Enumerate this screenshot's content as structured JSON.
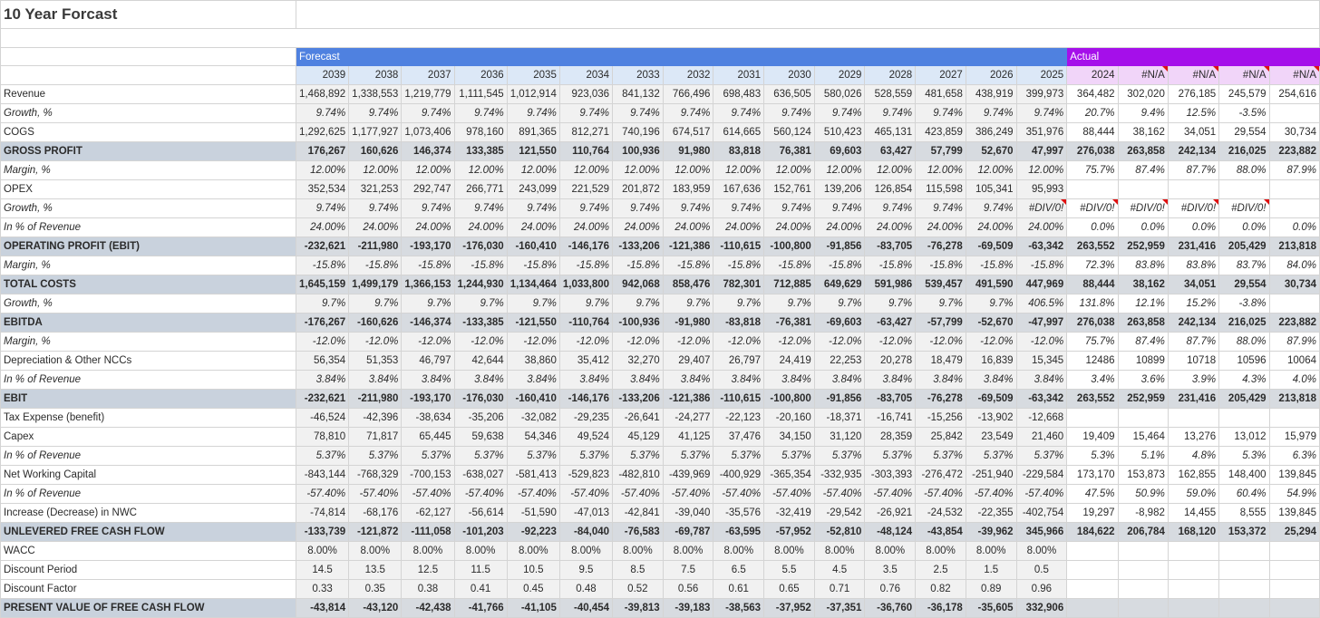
{
  "sheet": {
    "title": "10 Year Forcast",
    "forecast_label": "Forecast",
    "actual_label": "Actual",
    "forecast_years": [
      "2039",
      "2038",
      "2037",
      "2036",
      "2035",
      "2034",
      "2033",
      "2032",
      "2031",
      "2030",
      "2029",
      "2028",
      "2027",
      "2026",
      "2025"
    ],
    "actual_years": [
      "2024",
      "#N/A",
      "#N/A",
      "#N/A",
      "#N/A"
    ],
    "colors": {
      "forecast_header": "#4f81e0",
      "actual_header": "#a50fea",
      "bold_row": "#d7dbe0",
      "error_flag": "#e01010"
    }
  },
  "rows": [
    {
      "label": "Revenue",
      "style": "normal",
      "values": [
        "1,468,892",
        "1,338,553",
        "1,219,779",
        "1,111,545",
        "1,012,914",
        "923,036",
        "841,132",
        "766,496",
        "698,483",
        "636,505",
        "580,026",
        "528,559",
        "481,658",
        "438,919",
        "399,973",
        "364,482",
        "302,020",
        "276,185",
        "245,579",
        "254,616"
      ]
    },
    {
      "label": "Growth, %",
      "style": "sub",
      "values": [
        "9.74%",
        "9.74%",
        "9.74%",
        "9.74%",
        "9.74%",
        "9.74%",
        "9.74%",
        "9.74%",
        "9.74%",
        "9.74%",
        "9.74%",
        "9.74%",
        "9.74%",
        "9.74%",
        "9.74%",
        "20.7%",
        "9.4%",
        "12.5%",
        "-3.5%",
        ""
      ]
    },
    {
      "label": "COGS",
      "style": "normal",
      "values": [
        "1,292,625",
        "1,177,927",
        "1,073,406",
        "978,160",
        "891,365",
        "812,271",
        "740,196",
        "674,517",
        "614,665",
        "560,124",
        "510,423",
        "465,131",
        "423,859",
        "386,249",
        "351,976",
        "88,444",
        "38,162",
        "34,051",
        "29,554",
        "30,734"
      ]
    },
    {
      "label": "GROSS PROFIT",
      "style": "bold",
      "values": [
        "176,267",
        "160,626",
        "146,374",
        "133,385",
        "121,550",
        "110,764",
        "100,936",
        "91,980",
        "83,818",
        "76,381",
        "69,603",
        "63,427",
        "57,799",
        "52,670",
        "47,997",
        "276,038",
        "263,858",
        "242,134",
        "216,025",
        "223,882"
      ]
    },
    {
      "label": "Margin, %",
      "style": "sub",
      "values": [
        "12.00%",
        "12.00%",
        "12.00%",
        "12.00%",
        "12.00%",
        "12.00%",
        "12.00%",
        "12.00%",
        "12.00%",
        "12.00%",
        "12.00%",
        "12.00%",
        "12.00%",
        "12.00%",
        "12.00%",
        "75.7%",
        "87.4%",
        "87.7%",
        "88.0%",
        "87.9%"
      ]
    },
    {
      "label": "OPEX",
      "style": "normal",
      "values": [
        "352,534",
        "321,253",
        "292,747",
        "266,771",
        "243,099",
        "221,529",
        "201,872",
        "183,959",
        "167,636",
        "152,761",
        "139,206",
        "126,854",
        "115,598",
        "105,341",
        "95,993",
        "",
        "",
        "",
        "",
        ""
      ]
    },
    {
      "label": "Growth, %",
      "style": "sub",
      "values": [
        "9.74%",
        "9.74%",
        "9.74%",
        "9.74%",
        "9.74%",
        "9.74%",
        "9.74%",
        "9.74%",
        "9.74%",
        "9.74%",
        "9.74%",
        "9.74%",
        "9.74%",
        "9.74%",
        "#DIV/0!",
        "#DIV/0!",
        "#DIV/0!",
        "#DIV/0!",
        "#DIV/0!",
        ""
      ]
    },
    {
      "label": "In % of Revenue",
      "style": "sub",
      "values": [
        "24.00%",
        "24.00%",
        "24.00%",
        "24.00%",
        "24.00%",
        "24.00%",
        "24.00%",
        "24.00%",
        "24.00%",
        "24.00%",
        "24.00%",
        "24.00%",
        "24.00%",
        "24.00%",
        "24.00%",
        "0.0%",
        "0.0%",
        "0.0%",
        "0.0%",
        "0.0%"
      ]
    },
    {
      "label": "OPERATING PROFIT (EBIT)",
      "style": "bold",
      "values": [
        "-232,621",
        "-211,980",
        "-193,170",
        "-176,030",
        "-160,410",
        "-146,176",
        "-133,206",
        "-121,386",
        "-110,615",
        "-100,800",
        "-91,856",
        "-83,705",
        "-76,278",
        "-69,509",
        "-63,342",
        "263,552",
        "252,959",
        "231,416",
        "205,429",
        "213,818"
      ]
    },
    {
      "label": "Margin, %",
      "style": "sub",
      "values": [
        "-15.8%",
        "-15.8%",
        "-15.8%",
        "-15.8%",
        "-15.8%",
        "-15.8%",
        "-15.8%",
        "-15.8%",
        "-15.8%",
        "-15.8%",
        "-15.8%",
        "-15.8%",
        "-15.8%",
        "-15.8%",
        "-15.8%",
        "72.3%",
        "83.8%",
        "83.8%",
        "83.7%",
        "84.0%"
      ]
    },
    {
      "label": "TOTAL COSTS",
      "style": "bold",
      "values": [
        "1,645,159",
        "1,499,179",
        "1,366,153",
        "1,244,930",
        "1,134,464",
        "1,033,800",
        "942,068",
        "858,476",
        "782,301",
        "712,885",
        "649,629",
        "591,986",
        "539,457",
        "491,590",
        "447,969",
        "88,444",
        "38,162",
        "34,051",
        "29,554",
        "30,734"
      ]
    },
    {
      "label": "Growth, %",
      "style": "sub",
      "values": [
        "9.7%",
        "9.7%",
        "9.7%",
        "9.7%",
        "9.7%",
        "9.7%",
        "9.7%",
        "9.7%",
        "9.7%",
        "9.7%",
        "9.7%",
        "9.7%",
        "9.7%",
        "9.7%",
        "406.5%",
        "131.8%",
        "12.1%",
        "15.2%",
        "-3.8%",
        ""
      ]
    },
    {
      "label": "EBITDA",
      "style": "bold",
      "values": [
        "-176,267",
        "-160,626",
        "-146,374",
        "-133,385",
        "-121,550",
        "-110,764",
        "-100,936",
        "-91,980",
        "-83,818",
        "-76,381",
        "-69,603",
        "-63,427",
        "-57,799",
        "-52,670",
        "-47,997",
        "276,038",
        "263,858",
        "242,134",
        "216,025",
        "223,882"
      ]
    },
    {
      "label": "Margin, %",
      "style": "sub",
      "values": [
        "-12.0%",
        "-12.0%",
        "-12.0%",
        "-12.0%",
        "-12.0%",
        "-12.0%",
        "-12.0%",
        "-12.0%",
        "-12.0%",
        "-12.0%",
        "-12.0%",
        "-12.0%",
        "-12.0%",
        "-12.0%",
        "-12.0%",
        "75.7%",
        "87.4%",
        "87.7%",
        "88.0%",
        "87.9%"
      ]
    },
    {
      "label": "Depreciation & Other NCCs",
      "style": "normal",
      "values": [
        "56,354",
        "51,353",
        "46,797",
        "42,644",
        "38,860",
        "35,412",
        "32,270",
        "29,407",
        "26,797",
        "24,419",
        "22,253",
        "20,278",
        "18,479",
        "16,839",
        "15,345",
        "12486",
        "10899",
        "10718",
        "10596",
        "10064"
      ]
    },
    {
      "label": "In % of Revenue",
      "style": "sub",
      "values": [
        "3.84%",
        "3.84%",
        "3.84%",
        "3.84%",
        "3.84%",
        "3.84%",
        "3.84%",
        "3.84%",
        "3.84%",
        "3.84%",
        "3.84%",
        "3.84%",
        "3.84%",
        "3.84%",
        "3.84%",
        "3.4%",
        "3.6%",
        "3.9%",
        "4.3%",
        "4.0%"
      ]
    },
    {
      "label": "EBIT",
      "style": "bold",
      "values": [
        "-232,621",
        "-211,980",
        "-193,170",
        "-176,030",
        "-160,410",
        "-146,176",
        "-133,206",
        "-121,386",
        "-110,615",
        "-100,800",
        "-91,856",
        "-83,705",
        "-76,278",
        "-69,509",
        "-63,342",
        "263,552",
        "252,959",
        "231,416",
        "205,429",
        "213,818"
      ]
    },
    {
      "label": "Tax Expense (benefit)",
      "style": "normal",
      "values": [
        "-46,524",
        "-42,396",
        "-38,634",
        "-35,206",
        "-32,082",
        "-29,235",
        "-26,641",
        "-24,277",
        "-22,123",
        "-20,160",
        "-18,371",
        "-16,741",
        "-15,256",
        "-13,902",
        "-12,668",
        "",
        "",
        "",
        "",
        ""
      ]
    },
    {
      "label": "Capex",
      "style": "normal",
      "values": [
        "78,810",
        "71,817",
        "65,445",
        "59,638",
        "54,346",
        "49,524",
        "45,129",
        "41,125",
        "37,476",
        "34,150",
        "31,120",
        "28,359",
        "25,842",
        "23,549",
        "21,460",
        "19,409",
        "15,464",
        "13,276",
        "13,012",
        "15,979"
      ]
    },
    {
      "label": "In % of Revenue",
      "style": "sub",
      "values": [
        "5.37%",
        "5.37%",
        "5.37%",
        "5.37%",
        "5.37%",
        "5.37%",
        "5.37%",
        "5.37%",
        "5.37%",
        "5.37%",
        "5.37%",
        "5.37%",
        "5.37%",
        "5.37%",
        "5.37%",
        "5.3%",
        "5.1%",
        "4.8%",
        "5.3%",
        "6.3%"
      ]
    },
    {
      "label": "Net Working Capital",
      "style": "normal",
      "values": [
        "-843,144",
        "-768,329",
        "-700,153",
        "-638,027",
        "-581,413",
        "-529,823",
        "-482,810",
        "-439,969",
        "-400,929",
        "-365,354",
        "-332,935",
        "-303,393",
        "-276,472",
        "-251,940",
        "-229,584",
        "173,170",
        "153,873",
        "162,855",
        "148,400",
        "139,845"
      ]
    },
    {
      "label": "In % of Revenue",
      "style": "sub",
      "values": [
        "-57.40%",
        "-57.40%",
        "-57.40%",
        "-57.40%",
        "-57.40%",
        "-57.40%",
        "-57.40%",
        "-57.40%",
        "-57.40%",
        "-57.40%",
        "-57.40%",
        "-57.40%",
        "-57.40%",
        "-57.40%",
        "-57.40%",
        "47.5%",
        "50.9%",
        "59.0%",
        "60.4%",
        "54.9%"
      ]
    },
    {
      "label": "Increase (Decrease) in NWC",
      "style": "normal",
      "values": [
        "-74,814",
        "-68,176",
        "-62,127",
        "-56,614",
        "-51,590",
        "-47,013",
        "-42,841",
        "-39,040",
        "-35,576",
        "-32,419",
        "-29,542",
        "-26,921",
        "-24,532",
        "-22,355",
        "-402,754",
        "19,297",
        "-8,982",
        "14,455",
        "8,555",
        "139,845"
      ]
    },
    {
      "label": "UNLEVERED FREE CASH FLOW",
      "style": "bold",
      "values": [
        "-133,739",
        "-121,872",
        "-111,058",
        "-101,203",
        "-92,223",
        "-84,040",
        "-76,583",
        "-69,787",
        "-63,595",
        "-57,952",
        "-52,810",
        "-48,124",
        "-43,854",
        "-39,962",
        "345,966",
        "184,622",
        "206,784",
        "168,120",
        "153,372",
        "25,294"
      ]
    },
    {
      "label": "WACC",
      "style": "normal",
      "center": true,
      "values": [
        "8.00%",
        "8.00%",
        "8.00%",
        "8.00%",
        "8.00%",
        "8.00%",
        "8.00%",
        "8.00%",
        "8.00%",
        "8.00%",
        "8.00%",
        "8.00%",
        "8.00%",
        "8.00%",
        "8.00%",
        "",
        "",
        "",
        "",
        ""
      ]
    },
    {
      "label": "Discount Period",
      "style": "normal",
      "center": true,
      "values": [
        "14.5",
        "13.5",
        "12.5",
        "11.5",
        "10.5",
        "9.5",
        "8.5",
        "7.5",
        "6.5",
        "5.5",
        "4.5",
        "3.5",
        "2.5",
        "1.5",
        "0.5",
        "",
        "",
        "",
        "",
        ""
      ]
    },
    {
      "label": "Discount Factor",
      "style": "normal",
      "center": true,
      "values": [
        "0.33",
        "0.35",
        "0.38",
        "0.41",
        "0.45",
        "0.48",
        "0.52",
        "0.56",
        "0.61",
        "0.65",
        "0.71",
        "0.76",
        "0.82",
        "0.89",
        "0.96",
        "",
        "",
        "",
        "",
        ""
      ]
    },
    {
      "label": "PRESENT VALUE OF FREE CASH FLOW",
      "style": "bold",
      "values": [
        "-43,814",
        "-43,120",
        "-42,438",
        "-41,766",
        "-41,105",
        "-40,454",
        "-39,813",
        "-39,183",
        "-38,563",
        "-37,952",
        "-37,351",
        "-36,760",
        "-36,178",
        "-35,605",
        "332,906",
        "",
        "",
        "",
        "",
        ""
      ]
    }
  ]
}
